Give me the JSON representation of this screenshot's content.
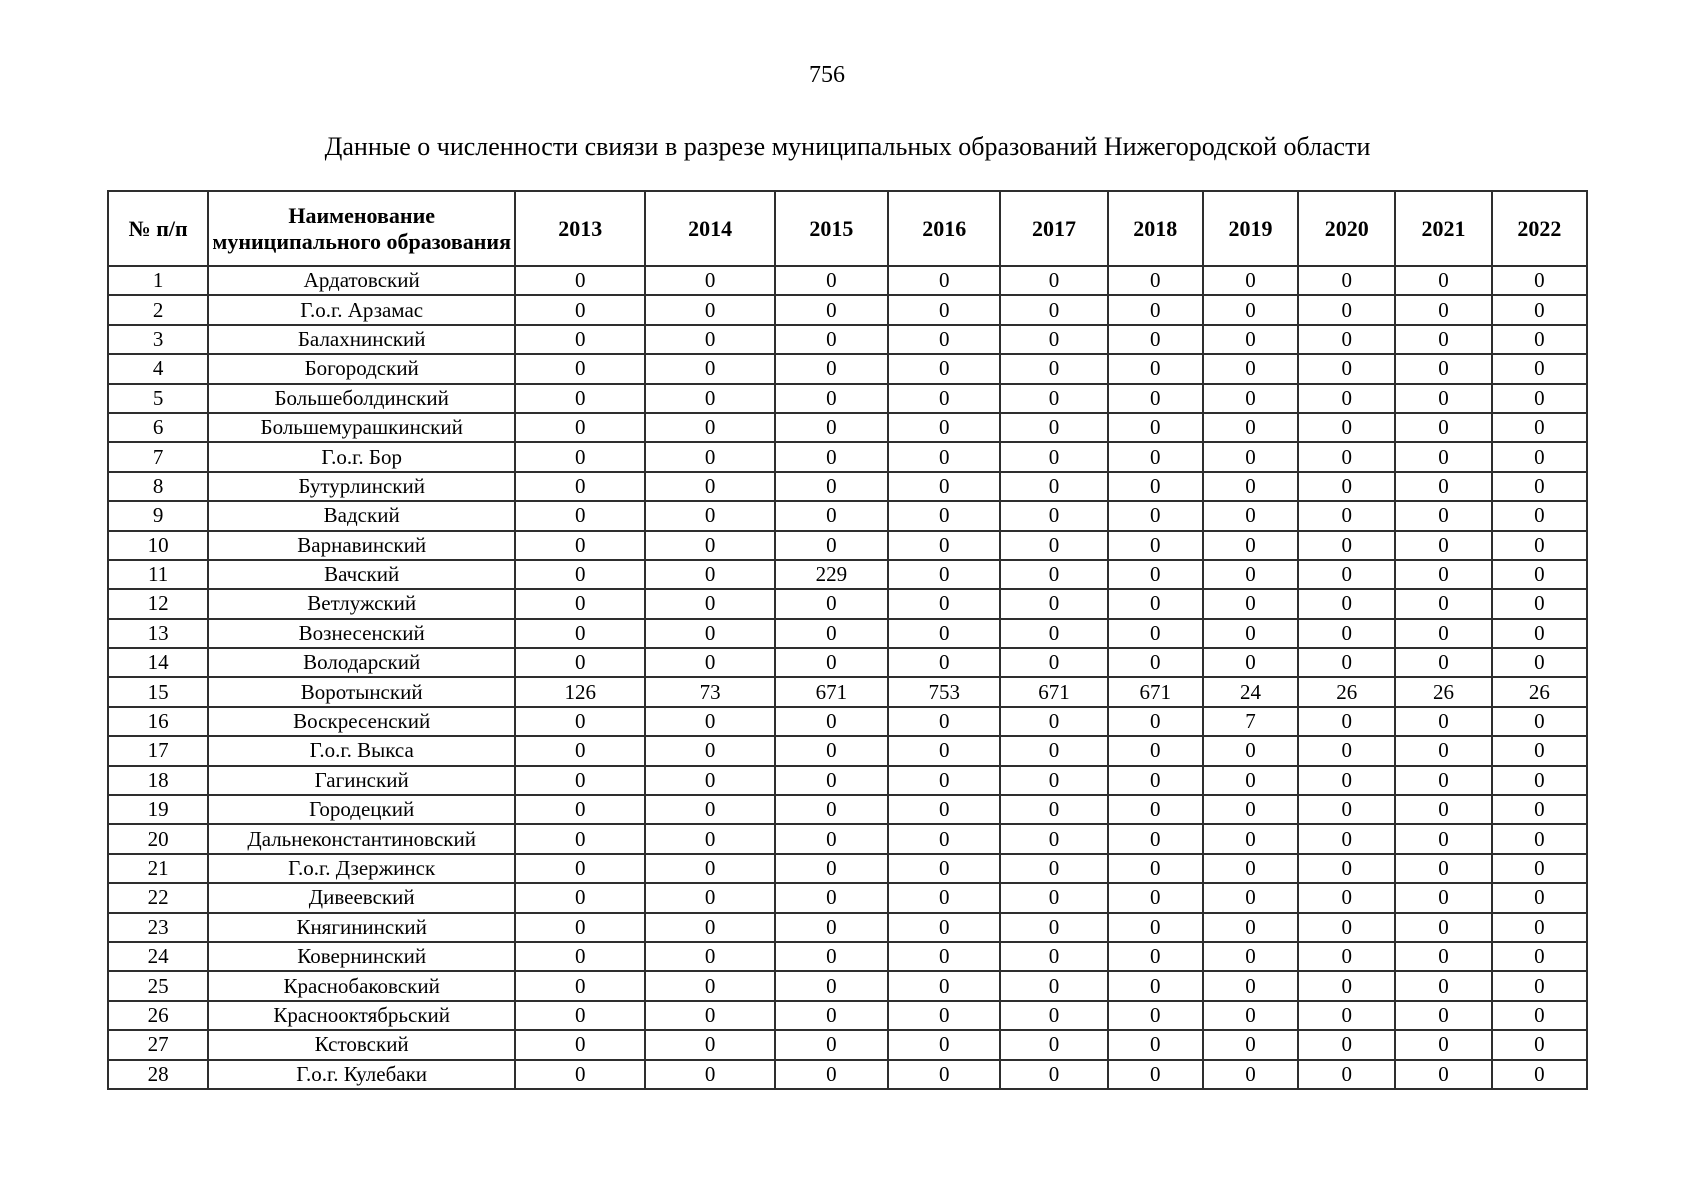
{
  "page": {
    "number": "756",
    "title": "Данные о численности свиязи в разрезе муниципальных образований Нижегородской области"
  },
  "table": {
    "col_header_num": "№ п/п",
    "col_header_name": "Наименование муниципального образования",
    "years": [
      "2013",
      "2014",
      "2015",
      "2016",
      "2017",
      "2018",
      "2019",
      "2020",
      "2021",
      "2022"
    ],
    "rows": [
      {
        "num": "1",
        "name": "Ардатовский",
        "values": [
          "0",
          "0",
          "0",
          "0",
          "0",
          "0",
          "0",
          "0",
          "0",
          "0"
        ]
      },
      {
        "num": "2",
        "name": "Г.о.г. Арзамас",
        "values": [
          "0",
          "0",
          "0",
          "0",
          "0",
          "0",
          "0",
          "0",
          "0",
          "0"
        ]
      },
      {
        "num": "3",
        "name": "Балахнинский",
        "values": [
          "0",
          "0",
          "0",
          "0",
          "0",
          "0",
          "0",
          "0",
          "0",
          "0"
        ]
      },
      {
        "num": "4",
        "name": "Богородский",
        "values": [
          "0",
          "0",
          "0",
          "0",
          "0",
          "0",
          "0",
          "0",
          "0",
          "0"
        ]
      },
      {
        "num": "5",
        "name": "Большеболдинский",
        "values": [
          "0",
          "0",
          "0",
          "0",
          "0",
          "0",
          "0",
          "0",
          "0",
          "0"
        ]
      },
      {
        "num": "6",
        "name": "Большемурашкинский",
        "values": [
          "0",
          "0",
          "0",
          "0",
          "0",
          "0",
          "0",
          "0",
          "0",
          "0"
        ]
      },
      {
        "num": "7",
        "name": "Г.о.г. Бор",
        "values": [
          "0",
          "0",
          "0",
          "0",
          "0",
          "0",
          "0",
          "0",
          "0",
          "0"
        ]
      },
      {
        "num": "8",
        "name": "Бутурлинский",
        "values": [
          "0",
          "0",
          "0",
          "0",
          "0",
          "0",
          "0",
          "0",
          "0",
          "0"
        ]
      },
      {
        "num": "9",
        "name": "Вадский",
        "values": [
          "0",
          "0",
          "0",
          "0",
          "0",
          "0",
          "0",
          "0",
          "0",
          "0"
        ]
      },
      {
        "num": "10",
        "name": "Варнавинский",
        "values": [
          "0",
          "0",
          "0",
          "0",
          "0",
          "0",
          "0",
          "0",
          "0",
          "0"
        ]
      },
      {
        "num": "11",
        "name": "Вачский",
        "values": [
          "0",
          "0",
          "229",
          "0",
          "0",
          "0",
          "0",
          "0",
          "0",
          "0"
        ]
      },
      {
        "num": "12",
        "name": "Ветлужский",
        "values": [
          "0",
          "0",
          "0",
          "0",
          "0",
          "0",
          "0",
          "0",
          "0",
          "0"
        ]
      },
      {
        "num": "13",
        "name": "Вознесенский",
        "values": [
          "0",
          "0",
          "0",
          "0",
          "0",
          "0",
          "0",
          "0",
          "0",
          "0"
        ]
      },
      {
        "num": "14",
        "name": "Володарский",
        "values": [
          "0",
          "0",
          "0",
          "0",
          "0",
          "0",
          "0",
          "0",
          "0",
          "0"
        ]
      },
      {
        "num": "15",
        "name": "Воротынский",
        "values": [
          "126",
          "73",
          "671",
          "753",
          "671",
          "671",
          "24",
          "26",
          "26",
          "26"
        ]
      },
      {
        "num": "16",
        "name": "Воскресенский",
        "values": [
          "0",
          "0",
          "0",
          "0",
          "0",
          "0",
          "7",
          "0",
          "0",
          "0"
        ]
      },
      {
        "num": "17",
        "name": "Г.о.г. Выкса",
        "values": [
          "0",
          "0",
          "0",
          "0",
          "0",
          "0",
          "0",
          "0",
          "0",
          "0"
        ]
      },
      {
        "num": "18",
        "name": "Гагинский",
        "values": [
          "0",
          "0",
          "0",
          "0",
          "0",
          "0",
          "0",
          "0",
          "0",
          "0"
        ]
      },
      {
        "num": "19",
        "name": "Городецкий",
        "values": [
          "0",
          "0",
          "0",
          "0",
          "0",
          "0",
          "0",
          "0",
          "0",
          "0"
        ]
      },
      {
        "num": "20",
        "name": "Дальнеконстантиновский",
        "values": [
          "0",
          "0",
          "0",
          "0",
          "0",
          "0",
          "0",
          "0",
          "0",
          "0"
        ]
      },
      {
        "num": "21",
        "name": "Г.о.г. Дзержинск",
        "values": [
          "0",
          "0",
          "0",
          "0",
          "0",
          "0",
          "0",
          "0",
          "0",
          "0"
        ]
      },
      {
        "num": "22",
        "name": "Дивеевский",
        "values": [
          "0",
          "0",
          "0",
          "0",
          "0",
          "0",
          "0",
          "0",
          "0",
          "0"
        ]
      },
      {
        "num": "23",
        "name": "Княгининский",
        "values": [
          "0",
          "0",
          "0",
          "0",
          "0",
          "0",
          "0",
          "0",
          "0",
          "0"
        ]
      },
      {
        "num": "24",
        "name": "Ковернинский",
        "values": [
          "0",
          "0",
          "0",
          "0",
          "0",
          "0",
          "0",
          "0",
          "0",
          "0"
        ]
      },
      {
        "num": "25",
        "name": "Краснобаковский",
        "values": [
          "0",
          "0",
          "0",
          "0",
          "0",
          "0",
          "0",
          "0",
          "0",
          "0"
        ]
      },
      {
        "num": "26",
        "name": "Краснооктябрьский",
        "values": [
          "0",
          "0",
          "0",
          "0",
          "0",
          "0",
          "0",
          "0",
          "0",
          "0"
        ]
      },
      {
        "num": "27",
        "name": "Кстовский",
        "values": [
          "0",
          "0",
          "0",
          "0",
          "0",
          "0",
          "0",
          "0",
          "0",
          "0"
        ]
      },
      {
        "num": "28",
        "name": "Г.о.г. Кулебаки",
        "values": [
          "0",
          "0",
          "0",
          "0",
          "0",
          "0",
          "0",
          "0",
          "0",
          "0"
        ]
      }
    ]
  }
}
